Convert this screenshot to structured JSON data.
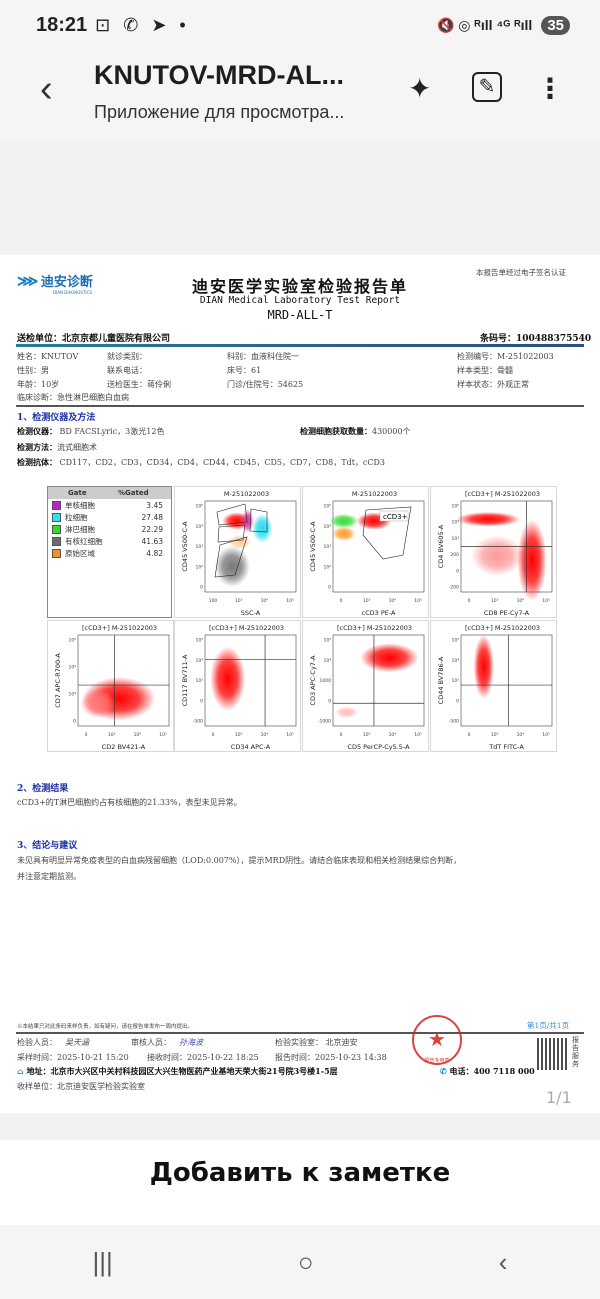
{
  "status_bar": {
    "time": "18:21",
    "left_icons": "⊡ ✆ ➤ •",
    "right_icons": "🔇 ◎ ᴿıll ⁴ᴳ ᴿıll",
    "battery": "35"
  },
  "app_bar": {
    "title": "KNUTOV-MRD-AL...",
    "subtitle": "Приложение для просмотра...",
    "back_icon": "‹",
    "ai_icon": "✦",
    "edit_icon": "✎",
    "more_icon": "⋮"
  },
  "report": {
    "logo_text": "迪安诊断",
    "logo_sub": "DIAN DIAGNOSTICS",
    "esign_note": "本报告单经过电子签名认证",
    "title_cn": "迪安医学实验室检验报告单",
    "title_en": "DIAN Medical Laboratory Test Report",
    "code": "MRD-ALL-T",
    "sender": "送检单位：北京京都儿童医院有限公司",
    "barcode": "条码号：100488375540",
    "info": [
      [
        "姓名：KNUTOV",
        "就诊类别：",
        "科别：血液科住院一",
        "检测编号：M-251022003"
      ],
      [
        "性别：男",
        "联系电话：",
        "床号：61",
        "样本类型：骨髓"
      ],
      [
        "年龄：10岁",
        "送检医生：蒋伶俐",
        "门诊/住院号：54625",
        "样本状态：外观正常"
      ]
    ],
    "diagnosis": "临床诊断：急性淋巴细胞白血病",
    "section1": "1、检测仪器及方法",
    "instrument_label": "检测仪器：",
    "instrument": "BD FACSLyric，3激光12色",
    "count_label": "检测细胞获取数量：",
    "count": "430000个",
    "method_label": "检测方法：",
    "method": "流式细胞术",
    "antibody_label": "检测抗体：",
    "antibodies": "CD117，CD2，CD3，CD34，CD4，CD44，CD45，CD5，CD7，CD8，Tdt，cCD3",
    "gate_table": {
      "headers": [
        "Gate",
        "%Gated"
      ],
      "rows": [
        {
          "name": "单核细胞",
          "pct": "3.45",
          "color": "#c21fd6"
        },
        {
          "name": "粒细胞",
          "pct": "27.48",
          "color": "#27e6f0"
        },
        {
          "name": "淋巴细胞",
          "pct": "22.29",
          "color": "#2ddc2d"
        },
        {
          "name": "有核红细胞",
          "pct": "41.63",
          "color": "#6b6b6b"
        },
        {
          "name": "原始区域",
          "pct": "4.82",
          "color": "#f0921e"
        }
      ]
    },
    "plots": [
      {
        "title": "M-251022003",
        "xlabel": "SSC-A",
        "ylabel": "CD45 V500-C-A",
        "xticks": [
          "100",
          "10³",
          "10⁴",
          "10⁵"
        ],
        "yticks": [
          "10⁵",
          "10⁴",
          "10³",
          "10²",
          "0"
        ]
      },
      {
        "title": "M-251022003",
        "xlabel": "cCD3 PE-A",
        "ylabel": "CD45 V500-C-A",
        "xticks": [
          "0",
          "10³",
          "10⁴",
          "10⁵"
        ],
        "yticks": [
          "10⁵",
          "10⁴",
          "10³",
          "10²",
          "0"
        ],
        "gate_label": "cCD3+"
      },
      {
        "title": "[cCD3+] M-251022003",
        "xlabel": "CD8 PE-Cy7-A",
        "ylabel": "CD4 BV605-A",
        "xticks": [
          "0",
          "10³",
          "10⁴",
          "10⁵"
        ],
        "yticks": [
          "10⁵",
          "10⁴",
          "10³",
          "200",
          "0",
          "-200"
        ]
      },
      {
        "title": "[cCD3+] M-251022003",
        "xlabel": "CD2 BV421-A",
        "ylabel": "CD7 APC-R700-A",
        "xticks": [
          "0",
          "10³",
          "10⁴",
          "10⁵"
        ],
        "yticks": [
          "10⁵",
          "10⁴",
          "10³",
          "0"
        ]
      },
      {
        "title": "[cCD3+] M-251022003",
        "xlabel": "CD34 APC-A",
        "ylabel": "CD117 BV711-A",
        "xticks": [
          "0",
          "10³",
          "10⁴",
          "10⁵"
        ],
        "yticks": [
          "10⁵",
          "10⁴",
          "10³",
          "0",
          "-500"
        ]
      },
      {
        "title": "[cCD3+] M-251022003",
        "xlabel": "CD5 PerCP-Cy5.5-A",
        "ylabel": "CD3 APC-Cy7-A",
        "xticks": [
          "0",
          "10³",
          "10⁴",
          "10⁵"
        ],
        "yticks": [
          "10⁵",
          "10⁴",
          "1000",
          "0",
          "-1000"
        ]
      },
      {
        "title": "[cCD3+] M-251022003",
        "xlabel": "TdT FITC-A",
        "ylabel": "CD44 BV786-A",
        "xticks": [
          "0",
          "10³",
          "10⁴",
          "10⁵"
        ],
        "yticks": [
          "10⁵",
          "10⁴",
          "10³",
          "0",
          "-500"
        ]
      }
    ],
    "section2": "2、检测结果",
    "result": "cCD3+的T淋巴细胞约占有核细胞的21.33%，表型未见异常。",
    "section3": "3、结论与建议",
    "conclusion1": "未见具有明显异常免疫表型的白血病残留细胞（LOD:0.007%），提示MRD阴性。请结合临床表现和相关检测结果综合判断，",
    "conclusion2": "并注意定期监测。",
    "footnote": "※本结果只对此条码来样负责，如有疑问，请在报告单发布一周内提出。",
    "page": "第1页/共1页",
    "tester_label": "检验人员：",
    "tester_sig": "吴天涵",
    "reviewer_label": "审核人员：",
    "reviewer_sig": "孙海波",
    "lab": "检验实验室： 北京迪安",
    "sample_time": "采样时间：2025-10-21 15:20",
    "receive_time": "接收时间：2025-10-22 18:25",
    "report_time": "报告时间：2025-10-23 14:38",
    "address": "地址：北京市大兴区中关村科技园区大兴生物医药产业基地天荣大街21号院3号楼1-5层",
    "phone": "电话：400 7118 000",
    "qr_label": "报告服务",
    "receiver": "收样单位：北京迪安医学检验实验室",
    "seal_text": "报告专用章"
  },
  "viewer": {
    "page_indicator": "1/1",
    "add_note": "Добавить к заметке"
  },
  "nav": {
    "recent": "|||",
    "home": "○",
    "back": "‹"
  }
}
